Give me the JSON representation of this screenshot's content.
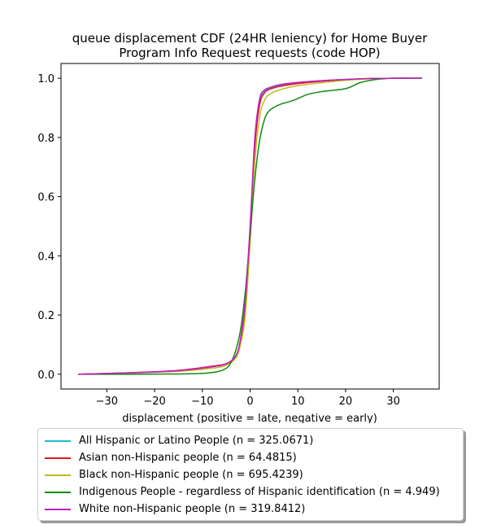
{
  "chart_data": {
    "type": "line",
    "title": "queue displacement CDF (24HR leniency) for Home Buyer Program Info Request  requests (code HOP)",
    "title_lines": [
      "queue displacement CDF (24HR leniency) for Home Buyer",
      "Program Info Request  requests (code HOP)"
    ],
    "xlabel": "displacement (positive = late, negative = early)",
    "ylabel": "",
    "xlim": [
      -39.6,
      39.6
    ],
    "ylim": [
      -0.05,
      1.05
    ],
    "xticks": [
      -30,
      -20,
      -10,
      0,
      10,
      20,
      30
    ],
    "xtick_labels": [
      "−30",
      "−20",
      "−10",
      "0",
      "10",
      "20",
      "30"
    ],
    "yticks": [
      0.0,
      0.2,
      0.4,
      0.6,
      0.8,
      1.0
    ],
    "ytick_labels": [
      "0.0",
      "0.2",
      "0.4",
      "0.6",
      "0.8",
      "1.0"
    ],
    "grid": false,
    "legend_position": "below",
    "series": [
      {
        "name": "All Hispanic or Latino People (n = 325.0671)",
        "color": "#17becf",
        "x": [
          -36,
          -25,
          -15,
          -8,
          -5,
          -3,
          -2,
          -1,
          0,
          1,
          2,
          3,
          4,
          6,
          10,
          15,
          20,
          25,
          30,
          36
        ],
        "y": [
          0.0,
          0.005,
          0.012,
          0.025,
          0.035,
          0.06,
          0.11,
          0.22,
          0.48,
          0.78,
          0.92,
          0.955,
          0.965,
          0.975,
          0.985,
          0.992,
          0.996,
          0.999,
          1.0,
          1.0
        ]
      },
      {
        "name": "Asian non-Hispanic people (n = 64.4815)",
        "color": "#e8141d",
        "x": [
          -36,
          -25,
          -15,
          -8,
          -5,
          -3,
          -2,
          -1,
          0,
          1,
          2,
          3,
          4,
          6,
          10,
          15,
          20,
          25,
          30,
          36
        ],
        "y": [
          0.0,
          0.005,
          0.013,
          0.027,
          0.036,
          0.06,
          0.11,
          0.22,
          0.48,
          0.77,
          0.91,
          0.95,
          0.962,
          0.972,
          0.982,
          0.99,
          0.995,
          0.999,
          1.0,
          1.0
        ]
      },
      {
        "name": "Black non-Hispanic people (n = 695.4239)",
        "color": "#bcbd22",
        "x": [
          -36,
          -25,
          -15,
          -8,
          -5,
          -3,
          -2,
          -1,
          0,
          1,
          2,
          3,
          4,
          6,
          10,
          15,
          20,
          25,
          30,
          36
        ],
        "y": [
          0.0,
          0.004,
          0.01,
          0.02,
          0.03,
          0.055,
          0.1,
          0.2,
          0.44,
          0.72,
          0.87,
          0.925,
          0.945,
          0.96,
          0.975,
          0.985,
          0.993,
          0.998,
          1.0,
          1.0
        ]
      },
      {
        "name": "Indigenous People - regardless of Hispanic identification (n = 4.949)",
        "color": "#138a13",
        "x": [
          -36,
          -25,
          -15,
          -10,
          -7,
          -5,
          -4,
          -3,
          -2,
          -1,
          0,
          1,
          2,
          3,
          4,
          6,
          9,
          12,
          15,
          20,
          23,
          26,
          30,
          36
        ],
        "y": [
          0.0,
          0.0,
          0.001,
          0.003,
          0.008,
          0.02,
          0.04,
          0.08,
          0.15,
          0.28,
          0.47,
          0.66,
          0.79,
          0.86,
          0.89,
          0.91,
          0.925,
          0.945,
          0.955,
          0.965,
          0.985,
          0.995,
          1.0,
          1.0
        ]
      },
      {
        "name": "White non-Hispanic people (n = 319.8412)",
        "color": "#c21bc2",
        "x": [
          -36,
          -25,
          -15,
          -8,
          -5,
          -3,
          -2,
          -1,
          0,
          1,
          2,
          3,
          4,
          6,
          10,
          15,
          20,
          25,
          30,
          36
        ],
        "y": [
          0.0,
          0.005,
          0.012,
          0.025,
          0.035,
          0.062,
          0.12,
          0.25,
          0.5,
          0.8,
          0.93,
          0.96,
          0.968,
          0.978,
          0.986,
          0.992,
          0.996,
          0.999,
          1.0,
          1.0
        ]
      }
    ]
  }
}
